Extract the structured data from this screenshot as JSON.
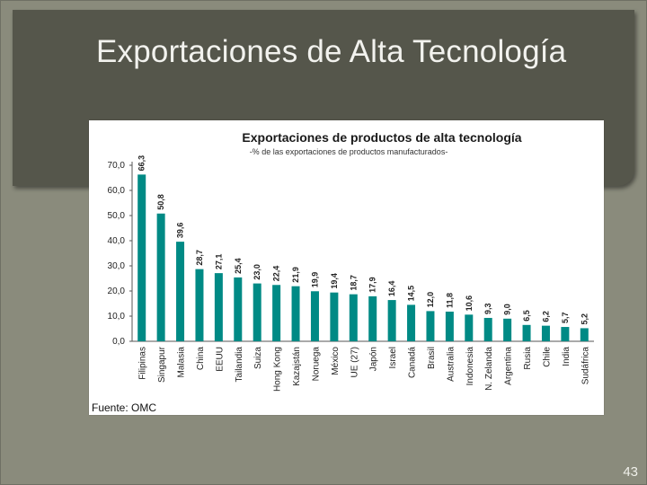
{
  "slide": {
    "title": "Exportaciones de Alta Tecnología",
    "page_number": "43"
  },
  "colors": {
    "background": "#8a8b7c",
    "title_panel": "#55564b",
    "bar": "#008a85",
    "title_text": "#f2f2ee"
  },
  "chart_data": {
    "type": "bar",
    "title": "Exportaciones de productos de alta tecnología",
    "subtitle": "-% de las exportaciones de productos manufacturados-",
    "source": "Fuente: OMC",
    "xlabel": "",
    "ylabel": "",
    "ylim": [
      0,
      70
    ],
    "yticks": [
      "0,0",
      "10,0",
      "20,0",
      "30,0",
      "40,0",
      "50,0",
      "60,0",
      "70,0"
    ],
    "grid": false,
    "categories": [
      "Filipinas",
      "Singapur",
      "Malasia",
      "China",
      "EEUU",
      "Tailandia",
      "Suiza",
      "Hong Kong",
      "Kazajstán",
      "Noruega",
      "México",
      "UE (27)",
      "Japón",
      "Israel",
      "Canadá",
      "Brasil",
      "Australia",
      "Indonesia",
      "N. Zelanda",
      "Argentina",
      "Rusia",
      "Chile",
      "India",
      "Sudáfrica"
    ],
    "values": [
      66.3,
      50.8,
      39.6,
      28.7,
      27.1,
      25.4,
      23.0,
      22.4,
      21.9,
      19.9,
      19.4,
      18.7,
      17.9,
      16.4,
      14.5,
      12.0,
      11.8,
      10.6,
      9.3,
      9.0,
      6.5,
      6.2,
      5.7,
      5.2
    ],
    "value_labels": [
      "66,3",
      "50,8",
      "39,6",
      "28,7",
      "27,1",
      "25,4",
      "23,0",
      "22,4",
      "21,9",
      "19,9",
      "19,4",
      "18,7",
      "17,9",
      "16,4",
      "14,5",
      "12,0",
      "11,8",
      "10,6",
      "9,3",
      "9,0",
      "6,5",
      "6,2",
      "5,7",
      "5,2"
    ]
  }
}
